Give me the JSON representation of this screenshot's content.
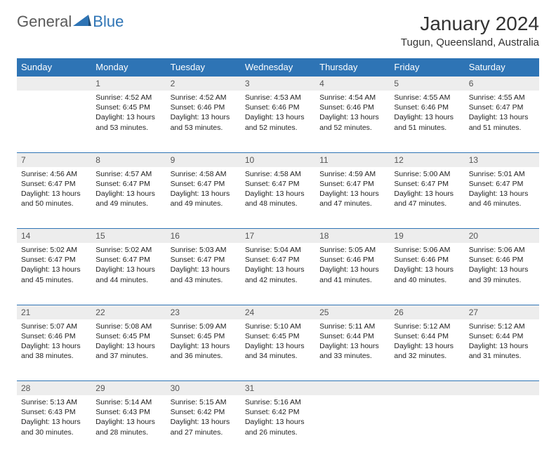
{
  "logo": {
    "text1": "General",
    "text2": "Blue"
  },
  "title": "January 2024",
  "location": "Tugun, Queensland, Australia",
  "colors": {
    "header_bg": "#2e74b5",
    "header_text": "#ffffff",
    "daynum_bg": "#ededed",
    "border_top": "#2e74b5",
    "text": "#222222",
    "logo_gray": "#5a5a5a",
    "logo_blue": "#2e74b5"
  },
  "day_headers": [
    "Sunday",
    "Monday",
    "Tuesday",
    "Wednesday",
    "Thursday",
    "Friday",
    "Saturday"
  ],
  "weeks": [
    {
      "nums": [
        "",
        "1",
        "2",
        "3",
        "4",
        "5",
        "6"
      ],
      "cells": [
        null,
        {
          "sunrise": "4:52 AM",
          "sunset": "6:45 PM",
          "daylight": "13 hours and 53 minutes."
        },
        {
          "sunrise": "4:52 AM",
          "sunset": "6:46 PM",
          "daylight": "13 hours and 53 minutes."
        },
        {
          "sunrise": "4:53 AM",
          "sunset": "6:46 PM",
          "daylight": "13 hours and 52 minutes."
        },
        {
          "sunrise": "4:54 AM",
          "sunset": "6:46 PM",
          "daylight": "13 hours and 52 minutes."
        },
        {
          "sunrise": "4:55 AM",
          "sunset": "6:46 PM",
          "daylight": "13 hours and 51 minutes."
        },
        {
          "sunrise": "4:55 AM",
          "sunset": "6:47 PM",
          "daylight": "13 hours and 51 minutes."
        }
      ]
    },
    {
      "nums": [
        "7",
        "8",
        "9",
        "10",
        "11",
        "12",
        "13"
      ],
      "cells": [
        {
          "sunrise": "4:56 AM",
          "sunset": "6:47 PM",
          "daylight": "13 hours and 50 minutes."
        },
        {
          "sunrise": "4:57 AM",
          "sunset": "6:47 PM",
          "daylight": "13 hours and 49 minutes."
        },
        {
          "sunrise": "4:58 AM",
          "sunset": "6:47 PM",
          "daylight": "13 hours and 49 minutes."
        },
        {
          "sunrise": "4:58 AM",
          "sunset": "6:47 PM",
          "daylight": "13 hours and 48 minutes."
        },
        {
          "sunrise": "4:59 AM",
          "sunset": "6:47 PM",
          "daylight": "13 hours and 47 minutes."
        },
        {
          "sunrise": "5:00 AM",
          "sunset": "6:47 PM",
          "daylight": "13 hours and 47 minutes."
        },
        {
          "sunrise": "5:01 AM",
          "sunset": "6:47 PM",
          "daylight": "13 hours and 46 minutes."
        }
      ]
    },
    {
      "nums": [
        "14",
        "15",
        "16",
        "17",
        "18",
        "19",
        "20"
      ],
      "cells": [
        {
          "sunrise": "5:02 AM",
          "sunset": "6:47 PM",
          "daylight": "13 hours and 45 minutes."
        },
        {
          "sunrise": "5:02 AM",
          "sunset": "6:47 PM",
          "daylight": "13 hours and 44 minutes."
        },
        {
          "sunrise": "5:03 AM",
          "sunset": "6:47 PM",
          "daylight": "13 hours and 43 minutes."
        },
        {
          "sunrise": "5:04 AM",
          "sunset": "6:47 PM",
          "daylight": "13 hours and 42 minutes."
        },
        {
          "sunrise": "5:05 AM",
          "sunset": "6:46 PM",
          "daylight": "13 hours and 41 minutes."
        },
        {
          "sunrise": "5:06 AM",
          "sunset": "6:46 PM",
          "daylight": "13 hours and 40 minutes."
        },
        {
          "sunrise": "5:06 AM",
          "sunset": "6:46 PM",
          "daylight": "13 hours and 39 minutes."
        }
      ]
    },
    {
      "nums": [
        "21",
        "22",
        "23",
        "24",
        "25",
        "26",
        "27"
      ],
      "cells": [
        {
          "sunrise": "5:07 AM",
          "sunset": "6:46 PM",
          "daylight": "13 hours and 38 minutes."
        },
        {
          "sunrise": "5:08 AM",
          "sunset": "6:45 PM",
          "daylight": "13 hours and 37 minutes."
        },
        {
          "sunrise": "5:09 AM",
          "sunset": "6:45 PM",
          "daylight": "13 hours and 36 minutes."
        },
        {
          "sunrise": "5:10 AM",
          "sunset": "6:45 PM",
          "daylight": "13 hours and 34 minutes."
        },
        {
          "sunrise": "5:11 AM",
          "sunset": "6:44 PM",
          "daylight": "13 hours and 33 minutes."
        },
        {
          "sunrise": "5:12 AM",
          "sunset": "6:44 PM",
          "daylight": "13 hours and 32 minutes."
        },
        {
          "sunrise": "5:12 AM",
          "sunset": "6:44 PM",
          "daylight": "13 hours and 31 minutes."
        }
      ]
    },
    {
      "nums": [
        "28",
        "29",
        "30",
        "31",
        "",
        "",
        ""
      ],
      "cells": [
        {
          "sunrise": "5:13 AM",
          "sunset": "6:43 PM",
          "daylight": "13 hours and 30 minutes."
        },
        {
          "sunrise": "5:14 AM",
          "sunset": "6:43 PM",
          "daylight": "13 hours and 28 minutes."
        },
        {
          "sunrise": "5:15 AM",
          "sunset": "6:42 PM",
          "daylight": "13 hours and 27 minutes."
        },
        {
          "sunrise": "5:16 AM",
          "sunset": "6:42 PM",
          "daylight": "13 hours and 26 minutes."
        },
        null,
        null,
        null
      ]
    }
  ],
  "labels": {
    "sunrise": "Sunrise:",
    "sunset": "Sunset:",
    "daylight": "Daylight:"
  }
}
